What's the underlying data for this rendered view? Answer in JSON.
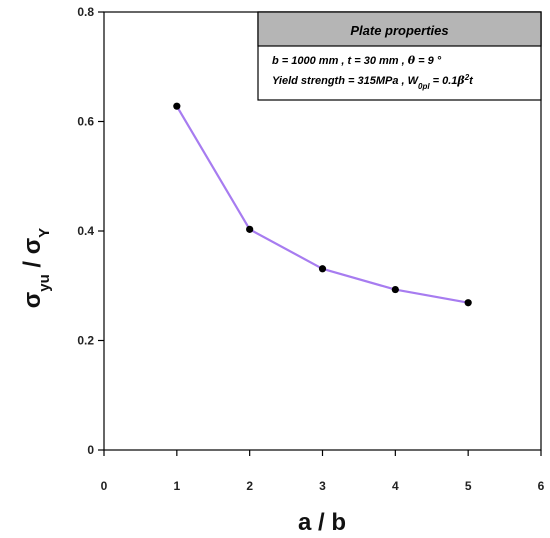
{
  "chart_data": {
    "type": "line",
    "title": "",
    "xlabel": "a / b",
    "ylabel": {
      "parts": [
        {
          "text": "σ",
          "sub": "yu"
        },
        {
          "text": " / ",
          "sub": ""
        },
        {
          "text": "σ",
          "sub": "Y"
        }
      ]
    },
    "xlim": [
      0,
      6
    ],
    "ylim": [
      0,
      0.8
    ],
    "xticks": [
      0,
      1,
      2,
      3,
      4,
      5,
      6
    ],
    "yticks": [
      0,
      0.2,
      0.4,
      0.6,
      0.8
    ],
    "xtick_labels": [
      "0",
      "1",
      "2",
      "3",
      "4",
      "5",
      "6"
    ],
    "ytick_labels": [
      "0",
      "0.2",
      "0.4",
      "0.6",
      "0.8"
    ],
    "grid": false,
    "series": [
      {
        "x": [
          1,
          2,
          3,
          4,
          5
        ],
        "y": [
          0.628,
          0.403,
          0.331,
          0.293,
          0.269
        ],
        "line_color": "#a77cf0",
        "marker_color": "#000000"
      }
    ],
    "legend_box": {
      "placement": "top-right",
      "header": "Plate properties",
      "header_bg": "#b5b5b5",
      "lines": [
        [
          {
            "t": "b = 1000 mm  , t = 30 mm  , "
          },
          {
            "t": "θ",
            "serif": true
          },
          {
            "t": " = 9 °"
          }
        ],
        [
          {
            "t": "Yield strength = 315MPa  ,  W"
          },
          {
            "t": "0pl",
            "sub": true
          },
          {
            "t": " = 0.1"
          },
          {
            "t": "β",
            "serif": true
          },
          {
            "t": "2",
            "sup": true
          },
          {
            "t": "t"
          }
        ]
      ]
    }
  }
}
